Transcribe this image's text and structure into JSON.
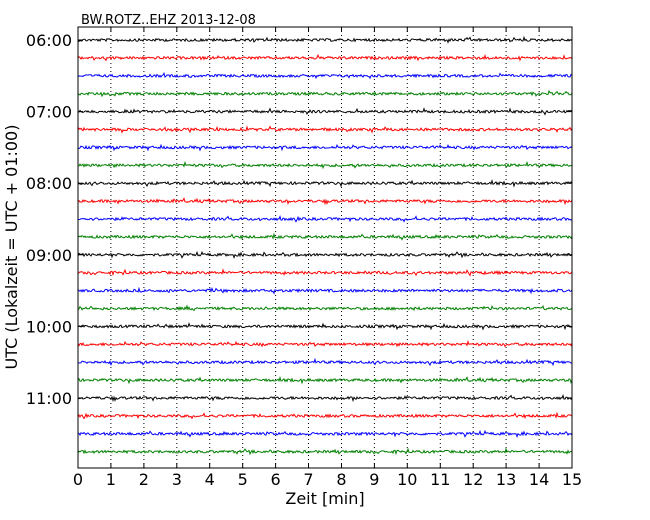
{
  "chart_data": {
    "type": "line",
    "title": "BW.ROTZ..EHZ 2013-12-08",
    "xlabel": "Zeit  [min]",
    "ylabel": "UTC (Lokalzeit = UTC + 01:00)",
    "xlim": [
      0,
      15
    ],
    "x_ticks": [
      0,
      1,
      2,
      3,
      4,
      5,
      6,
      7,
      8,
      9,
      10,
      11,
      12,
      13,
      14,
      15
    ],
    "x_tick_labels": [
      "0",
      "1",
      "2",
      "3",
      "4",
      "5",
      "6",
      "7",
      "8",
      "9",
      "10",
      "11",
      "12",
      "13",
      "14",
      "15"
    ],
    "y_tick_labels": [
      "06:00",
      "07:00",
      "08:00",
      "09:00",
      "10:00",
      "11:00"
    ],
    "grid": "x-dotted",
    "trace_interval_minutes": 15,
    "first_trace_start": "06:00",
    "color_cycle": [
      "#000000",
      "#ff0000",
      "#0000ff",
      "#008000"
    ],
    "series": [
      {
        "name": "06:00",
        "start": "06:00",
        "color": "#000000"
      },
      {
        "name": "06:15",
        "start": "06:15",
        "color": "#ff0000"
      },
      {
        "name": "06:30",
        "start": "06:30",
        "color": "#0000ff"
      },
      {
        "name": "06:45",
        "start": "06:45",
        "color": "#008000"
      },
      {
        "name": "07:00",
        "start": "07:00",
        "color": "#000000"
      },
      {
        "name": "07:15",
        "start": "07:15",
        "color": "#ff0000"
      },
      {
        "name": "07:30",
        "start": "07:30",
        "color": "#0000ff"
      },
      {
        "name": "07:45",
        "start": "07:45",
        "color": "#008000"
      },
      {
        "name": "08:00",
        "start": "08:00",
        "color": "#000000"
      },
      {
        "name": "08:15",
        "start": "08:15",
        "color": "#ff0000"
      },
      {
        "name": "08:30",
        "start": "08:30",
        "color": "#0000ff"
      },
      {
        "name": "08:45",
        "start": "08:45",
        "color": "#008000"
      },
      {
        "name": "09:00",
        "start": "09:00",
        "color": "#000000"
      },
      {
        "name": "09:15",
        "start": "09:15",
        "color": "#ff0000"
      },
      {
        "name": "09:30",
        "start": "09:30",
        "color": "#0000ff"
      },
      {
        "name": "09:45",
        "start": "09:45",
        "color": "#008000"
      },
      {
        "name": "10:00",
        "start": "10:00",
        "color": "#000000"
      },
      {
        "name": "10:15",
        "start": "10:15",
        "color": "#ff0000"
      },
      {
        "name": "10:30",
        "start": "10:30",
        "color": "#0000ff"
      },
      {
        "name": "10:45",
        "start": "10:45",
        "color": "#008000"
      },
      {
        "name": "11:00",
        "start": "11:00",
        "color": "#000000"
      },
      {
        "name": "11:15",
        "start": "11:15",
        "color": "#ff0000"
      },
      {
        "name": "11:30",
        "start": "11:30",
        "color": "#0000ff"
      },
      {
        "name": "11:45",
        "start": "11:45",
        "color": "#008000"
      }
    ]
  }
}
